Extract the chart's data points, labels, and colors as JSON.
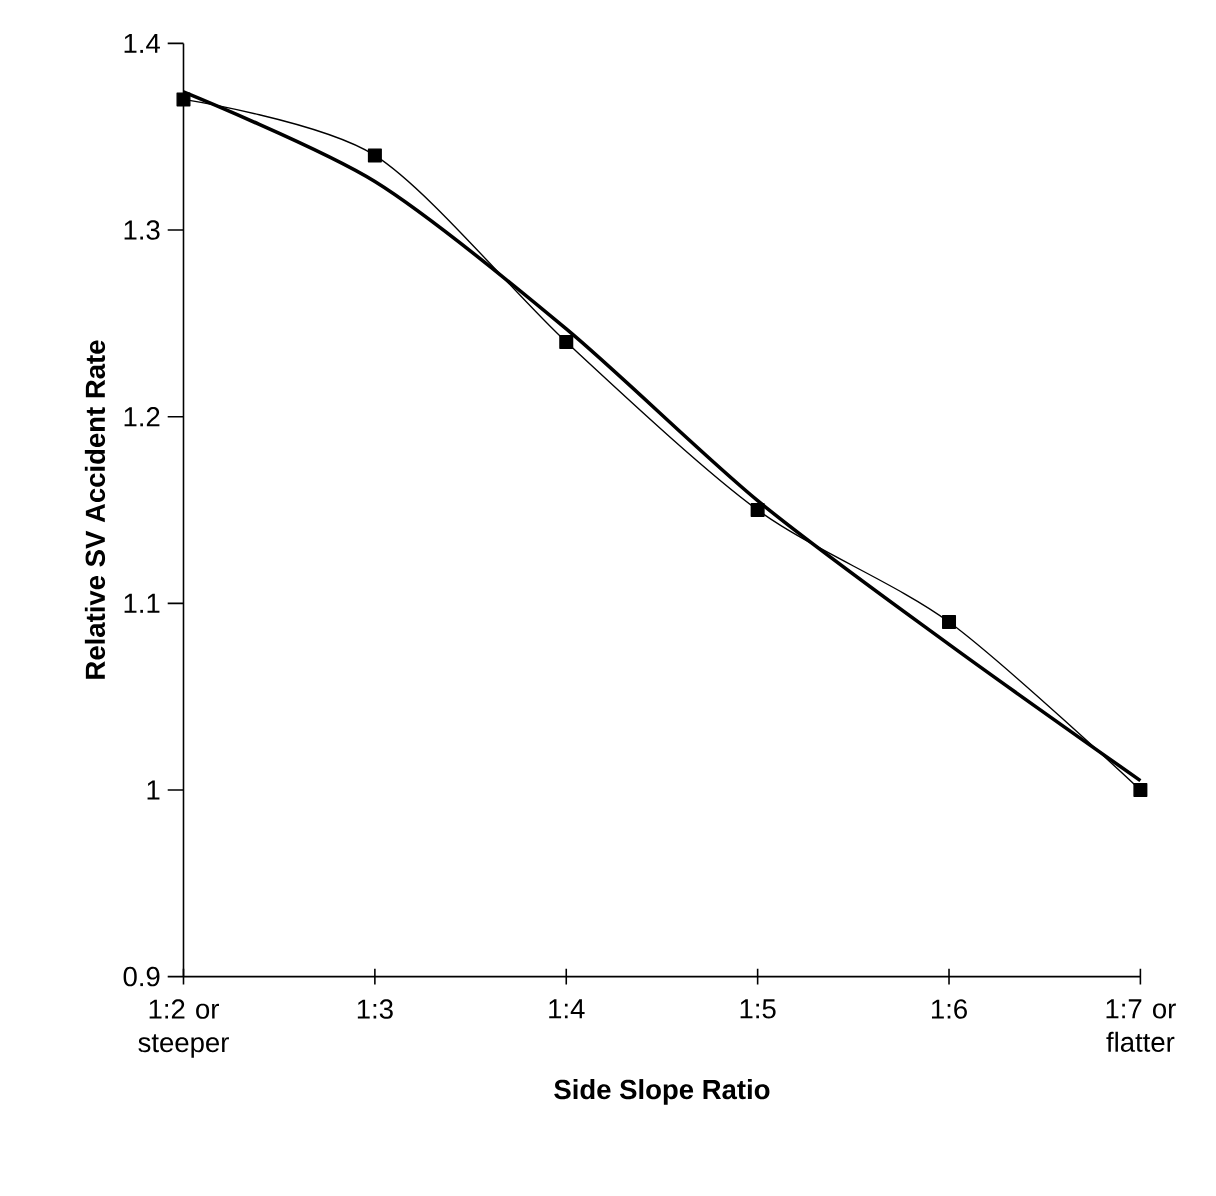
{
  "chart_data": {
    "type": "line",
    "xlabel": "Side Slope Ratio",
    "ylabel": "Relative SV Accident Rate",
    "categories": [
      "1:2 or steeper",
      "1:3",
      "1:4",
      "1:5",
      "1:6",
      "1:7 or flatter"
    ],
    "ylim": [
      0.9,
      1.4
    ],
    "yticks": [
      0.9,
      1,
      1.1,
      1.2,
      1.3,
      1.4
    ],
    "series": [
      {
        "color": "#000000",
        "marker": "square",
        "values": [
          1.37,
          1.34,
          1.24,
          1.15,
          1.09,
          1.0
        ]
      },
      {
        "color": "#000000",
        "marker": "none",
        "values": [
          1.374,
          1.326,
          1.247,
          1.155,
          1.078,
          1.005
        ]
      }
    ]
  }
}
